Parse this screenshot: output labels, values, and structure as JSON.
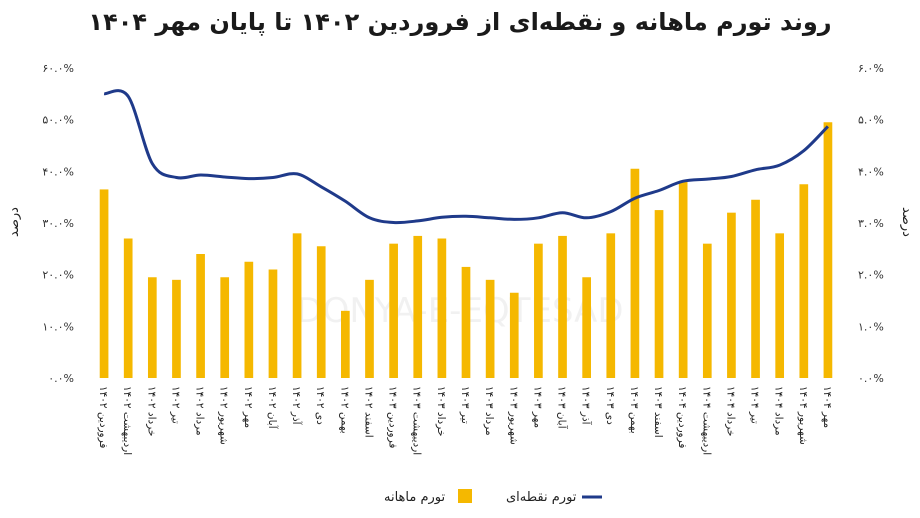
{
  "chart_data": {
    "type": "bar",
    "title": "روند تورم ماهانه و نقطه‌ای از فروردین ۱۴۰۲ تا پایان مهر ۱۴۰۴",
    "watermark": "DONYA-E-EQTESAD",
    "categories": [
      "فروردین ۱۴۰۲",
      "اردیبهشت ۱۴۰۲",
      "خرداد ۱۴۰۲",
      "تیر ۱۴۰۲",
      "مرداد ۱۴۰۲",
      "شهریور ۱۴۰۲",
      "مهر ۱۴۰۲",
      "آبان ۱۴۰۲",
      "آذر ۱۴۰۲",
      "دی ۱۴۰۲",
      "بهمن ۱۴۰۲",
      "اسفند ۱۴۰۲",
      "فروردین ۱۴۰۳",
      "اردیبهشت ۱۴۰۳",
      "خرداد ۱۴۰۳",
      "تیر ۱۴۰۳",
      "مرداد ۱۴۰۳",
      "شهریور ۱۴۰۳",
      "مهر ۱۴۰۳",
      "آبان ۱۴۰۳",
      "آذر ۱۴۰۳",
      "دی ۱۴۰۳",
      "بهمن ۱۴۰۳",
      "اسفند ۱۴۰۳",
      "فروردین ۱۴۰۴",
      "اردیبهشت ۱۴۰۴",
      "خرداد ۱۴۰۴",
      "تیر ۱۴۰۴",
      "مرداد ۱۴۰۴",
      "شهریور ۱۴۰۴",
      "مهر ۱۴۰۴"
    ],
    "series": [
      {
        "name": "تورم ماهانه",
        "kind": "bar",
        "axis": "right",
        "color": "#F5B800",
        "values": [
          3.65,
          2.7,
          1.95,
          1.9,
          2.4,
          1.95,
          2.25,
          2.1,
          2.8,
          2.55,
          1.3,
          1.9,
          2.6,
          2.75,
          2.7,
          2.15,
          1.9,
          1.65,
          2.6,
          2.75,
          1.95,
          2.8,
          4.05,
          3.25,
          3.8,
          2.6,
          3.2,
          3.45,
          2.8,
          3.75,
          4.95
        ]
      },
      {
        "name": "تورم نقطه‌ای",
        "kind": "line",
        "axis": "left",
        "color": "#1F3A8A",
        "values": [
          55.0,
          54.5,
          41.5,
          38.8,
          39.3,
          38.9,
          38.6,
          38.8,
          39.5,
          37.0,
          34.2,
          31.0,
          30.1,
          30.4,
          31.1,
          31.3,
          31.0,
          30.7,
          31.0,
          32.0,
          31.0,
          32.2,
          34.8,
          36.3,
          38.1,
          38.5,
          39.0,
          40.3,
          41.2,
          44.0,
          48.7
        ]
      }
    ],
    "y_left": {
      "label": "درصد",
      "min": 0,
      "max": 60,
      "ticks": [
        "۰.۰%",
        "۱۰.۰%",
        "۲۰.۰%",
        "۳۰.۰%",
        "۴۰.۰%",
        "۵۰.۰%",
        "۶۰.۰%"
      ]
    },
    "y_right": {
      "label": "درصد",
      "min": 0,
      "max": 6,
      "ticks": [
        "۰.۰%",
        "۱.۰%",
        "۲.۰%",
        "۳.۰%",
        "۴.۰%",
        "۵.۰%",
        "۶.۰%"
      ]
    },
    "grid": false,
    "legend_position": "bottom"
  }
}
